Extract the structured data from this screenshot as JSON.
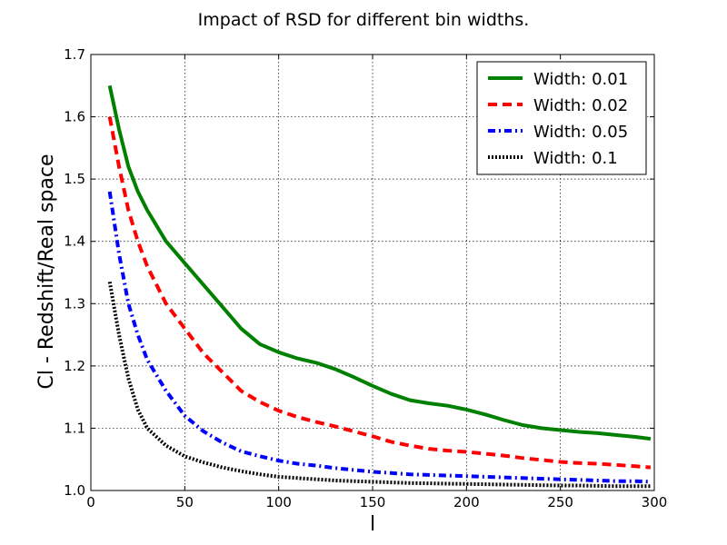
{
  "chart_data": {
    "type": "line",
    "title": "Impact of RSD for different bin widths.",
    "xlabel": "l",
    "ylabel": "Cl - Redshift/Real space",
    "xlim": [
      0,
      300
    ],
    "ylim": [
      1.0,
      1.7
    ],
    "xticks": [
      0,
      50,
      100,
      150,
      200,
      250,
      300
    ],
    "yticks": [
      "1.0",
      "1.1",
      "1.2",
      "1.3",
      "1.4",
      "1.5",
      "1.6",
      "1.7"
    ],
    "grid": true,
    "legend_position": "top-right",
    "series": [
      {
        "name": "Width: 0.01",
        "color": "#008000",
        "style": "solid",
        "x": [
          10,
          15,
          20,
          25,
          30,
          40,
          50,
          60,
          70,
          80,
          90,
          100,
          110,
          120,
          130,
          140,
          150,
          160,
          170,
          180,
          190,
          200,
          210,
          220,
          230,
          240,
          250,
          260,
          270,
          280,
          290,
          298
        ],
        "y": [
          1.65,
          1.58,
          1.52,
          1.48,
          1.45,
          1.4,
          1.365,
          1.33,
          1.295,
          1.26,
          1.235,
          1.222,
          1.212,
          1.205,
          1.195,
          1.182,
          1.168,
          1.155,
          1.145,
          1.14,
          1.136,
          1.13,
          1.122,
          1.113,
          1.105,
          1.1,
          1.097,
          1.094,
          1.092,
          1.089,
          1.086,
          1.083
        ]
      },
      {
        "name": "Width: 0.02",
        "color": "#ff0000",
        "style": "dashed",
        "x": [
          10,
          15,
          20,
          25,
          30,
          40,
          50,
          60,
          70,
          80,
          90,
          100,
          110,
          120,
          130,
          140,
          150,
          160,
          170,
          180,
          190,
          200,
          210,
          220,
          230,
          240,
          250,
          260,
          270,
          280,
          290,
          298
        ],
        "y": [
          1.6,
          1.52,
          1.45,
          1.4,
          1.36,
          1.3,
          1.26,
          1.22,
          1.19,
          1.16,
          1.142,
          1.128,
          1.118,
          1.11,
          1.103,
          1.095,
          1.087,
          1.078,
          1.072,
          1.067,
          1.064,
          1.062,
          1.059,
          1.056,
          1.052,
          1.049,
          1.046,
          1.044,
          1.043,
          1.041,
          1.039,
          1.037
        ]
      },
      {
        "name": "Width: 0.05",
        "color": "#0000ff",
        "style": "dashdot",
        "x": [
          10,
          15,
          20,
          25,
          30,
          40,
          50,
          60,
          70,
          80,
          90,
          100,
          110,
          120,
          130,
          140,
          150,
          160,
          170,
          180,
          190,
          200,
          210,
          220,
          230,
          240,
          250,
          260,
          270,
          280,
          290,
          298
        ],
        "y": [
          1.48,
          1.38,
          1.3,
          1.25,
          1.21,
          1.16,
          1.12,
          1.095,
          1.077,
          1.063,
          1.055,
          1.048,
          1.043,
          1.04,
          1.036,
          1.033,
          1.03,
          1.028,
          1.026,
          1.025,
          1.024,
          1.023,
          1.022,
          1.021,
          1.02,
          1.019,
          1.018,
          1.017,
          1.016,
          1.015,
          1.015,
          1.014
        ]
      },
      {
        "name": "Width: 0.1",
        "color": "#000000",
        "style": "dotted",
        "x": [
          10,
          15,
          20,
          25,
          30,
          40,
          50,
          60,
          70,
          80,
          90,
          100,
          110,
          120,
          130,
          140,
          150,
          160,
          170,
          180,
          190,
          200,
          210,
          220,
          230,
          240,
          250,
          260,
          270,
          280,
          290,
          298
        ],
        "y": [
          1.335,
          1.25,
          1.18,
          1.13,
          1.1,
          1.072,
          1.055,
          1.045,
          1.037,
          1.031,
          1.026,
          1.022,
          1.02,
          1.018,
          1.016,
          1.015,
          1.014,
          1.013,
          1.012,
          1.0115,
          1.011,
          1.0105,
          1.01,
          1.0095,
          1.009,
          1.0085,
          1.008,
          1.008,
          1.0075,
          1.007,
          1.007,
          1.007
        ]
      }
    ]
  }
}
